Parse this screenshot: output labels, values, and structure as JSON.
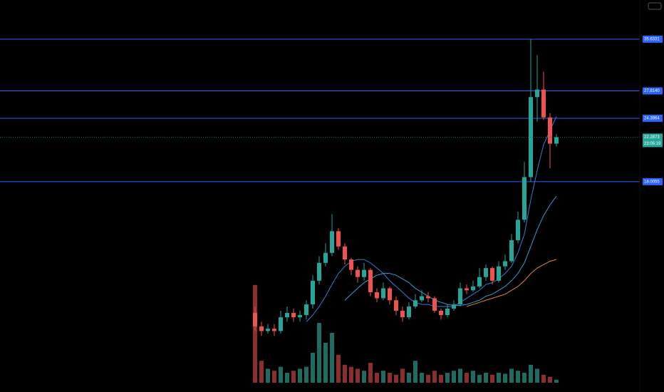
{
  "chart_data": {
    "type": "candlestick",
    "log_scale": true,
    "ylim": [
      6.8,
      43
    ],
    "up_color": "#26a69a",
    "down_color": "#ef5350",
    "volume_up_color": "#1e6b62",
    "volume_down_color": "#8a2e2e",
    "level_color": "#2962ff",
    "open": [
      9.6,
      9.0,
      8.8,
      8.9,
      8.8,
      9.4,
      9.6,
      9.4,
      9.5,
      10.0,
      11.2,
      12.2,
      12.8,
      14.2,
      13.2,
      12.4,
      11.8,
      11.4,
      11.8,
      10.6,
      10.3,
      10.8,
      10.2,
      9.7,
      9.4,
      9.9,
      10.2,
      10.4,
      10.3,
      9.7,
      9.5,
      9.8,
      10.0,
      10.8,
      10.7,
      10.9,
      11.4,
      11.9,
      11.2,
      12.0,
      12.3,
      13.6,
      15.0,
      18.4,
      27.0,
      28.0,
      24.5,
      21.6
    ],
    "high": [
      9.9,
      9.2,
      9.1,
      9.1,
      9.7,
      9.9,
      9.8,
      9.7,
      10.2,
      11.5,
      12.6,
      13.4,
      15.4,
      14.4,
      13.4,
      12.5,
      12.0,
      12.2,
      11.9,
      10.8,
      11.1,
      10.9,
      10.4,
      9.9,
      10.1,
      10.5,
      10.7,
      10.6,
      10.4,
      9.8,
      10.0,
      10.2,
      11.1,
      11.0,
      11.2,
      11.9,
      12.1,
      12.0,
      12.3,
      12.7,
      14.0,
      15.6,
      19.8,
      35.6331,
      33.0,
      30.5,
      25.0,
      22.6
    ],
    "low": [
      8.8,
      8.6,
      8.7,
      8.6,
      8.7,
      9.2,
      9.2,
      9.2,
      9.3,
      9.8,
      11.0,
      12.0,
      12.6,
      13.0,
      12.1,
      11.5,
      11.1,
      11.2,
      10.4,
      10.1,
      10.2,
      10.0,
      9.5,
      9.2,
      9.3,
      9.8,
      10.1,
      10.1,
      9.6,
      9.3,
      9.4,
      9.7,
      9.9,
      10.5,
      10.6,
      10.8,
      11.2,
      11.0,
      11.1,
      11.8,
      12.2,
      13.4,
      14.8,
      18.0,
      24.0,
      24.2,
      19.2,
      21.3
    ],
    "close": [
      9.0,
      8.8,
      8.9,
      8.8,
      9.4,
      9.6,
      9.4,
      9.5,
      10.0,
      11.2,
      12.2,
      12.8,
      14.2,
      13.2,
      12.4,
      11.8,
      11.4,
      11.8,
      10.6,
      10.3,
      10.8,
      10.2,
      9.7,
      9.4,
      9.9,
      10.2,
      10.4,
      10.3,
      9.7,
      9.5,
      9.8,
      10.0,
      10.8,
      10.7,
      10.9,
      11.4,
      11.9,
      11.2,
      12.0,
      12.3,
      13.6,
      15.0,
      18.4,
      27.0,
      28.0,
      24.5,
      21.6,
      22.2873
    ],
    "volume_lim": [
      0,
      100
    ],
    "volume": [
      98,
      22,
      14,
      12,
      16,
      10,
      12,
      14,
      16,
      30,
      60,
      40,
      50,
      28,
      18,
      16,
      14,
      12,
      20,
      10,
      12,
      10,
      8,
      14,
      10,
      22,
      10,
      8,
      12,
      8,
      10,
      12,
      14,
      10,
      12,
      8,
      10,
      8,
      10,
      9,
      14,
      12,
      10,
      18,
      14,
      8,
      6,
      3
    ],
    "series": [
      {
        "color": "#2f7fd6",
        "values": [
          null,
          null,
          null,
          null,
          null,
          null,
          null,
          null,
          9.2,
          9.5,
          9.9,
          10.4,
          11.0,
          11.6,
          12.0,
          12.3,
          12.4,
          12.4,
          12.2,
          11.9,
          11.6,
          11.2,
          10.9,
          10.6,
          10.3,
          10.1,
          10.0,
          10.0,
          9.9,
          9.9,
          9.9,
          9.9,
          10.1,
          10.3,
          10.5,
          10.7,
          11.0,
          11.1,
          11.3,
          11.6,
          12.0,
          12.8,
          14.0,
          16.5,
          19.0,
          21.5,
          23.0,
          24.6
        ]
      },
      {
        "color": "#2b9fd8",
        "values": [
          null,
          null,
          null,
          null,
          null,
          null,
          null,
          null,
          null,
          null,
          null,
          null,
          null,
          null,
          10.2,
          10.5,
          10.8,
          11.1,
          11.3,
          11.5,
          11.6,
          11.6,
          11.5,
          11.3,
          11.1,
          10.8,
          10.6,
          10.4,
          10.2,
          10.1,
          10.0,
          9.95,
          9.95,
          10.0,
          10.1,
          10.2,
          10.4,
          10.5,
          10.7,
          10.9,
          11.2,
          11.6,
          12.2,
          13.2,
          14.3,
          15.3,
          16.1,
          16.8
        ]
      },
      {
        "color": "#e08a1e",
        "values": [
          null,
          null,
          null,
          null,
          null,
          null,
          null,
          null,
          null,
          null,
          null,
          null,
          null,
          null,
          null,
          null,
          null,
          null,
          null,
          null,
          null,
          null,
          null,
          null,
          null,
          null,
          null,
          null,
          null,
          null,
          null,
          null,
          null,
          9.9,
          10.0,
          10.1,
          10.2,
          10.3,
          10.4,
          10.5,
          10.7,
          10.9,
          11.2,
          11.6,
          11.9,
          12.1,
          12.3,
          12.4
        ]
      }
    ],
    "levels": [
      {
        "value": 35.6331,
        "label": "35.6331"
      },
      {
        "value": 27.814,
        "label": "27.8140"
      },
      {
        "value": 24.3964,
        "label": "24.3964"
      },
      {
        "value": 18.0055,
        "label": "18.0055"
      }
    ],
    "last_price_label": "22.2873",
    "countdown": "23:05:19"
  }
}
